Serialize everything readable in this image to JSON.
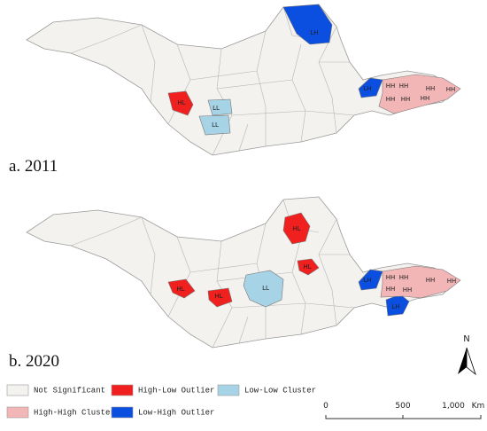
{
  "panels": [
    {
      "label": "a. 2011",
      "regions": [
        {
          "label": "LH",
          "color": "#0a4fe0"
        },
        {
          "label": "HL",
          "color": "#f0201e"
        },
        {
          "label": "LL",
          "color": "#a7d3e6"
        },
        {
          "label": "LL",
          "color": "#a7d3e6"
        },
        {
          "label": "LH",
          "color": "#0a4fe0"
        },
        {
          "label": "HH",
          "color": "#f2b6b6"
        },
        {
          "label": "HH",
          "color": "#f2b6b6"
        },
        {
          "label": "HH",
          "color": "#f2b6b6"
        },
        {
          "label": "HH",
          "color": "#f2b6b6"
        },
        {
          "label": "HH",
          "color": "#f2b6b6"
        },
        {
          "label": "HH",
          "color": "#f2b6b6"
        },
        {
          "label": "HH",
          "color": "#f2b6b6"
        }
      ]
    },
    {
      "label": "b. 2020",
      "regions": [
        {
          "label": "HL",
          "color": "#f0201e"
        },
        {
          "label": "HL",
          "color": "#f0201e"
        },
        {
          "label": "HL",
          "color": "#f0201e"
        },
        {
          "label": "HL",
          "color": "#f0201e"
        },
        {
          "label": "LL",
          "color": "#a7d3e6"
        },
        {
          "label": "LH",
          "color": "#0a4fe0"
        },
        {
          "label": "LH",
          "color": "#0a4fe0"
        },
        {
          "label": "HH",
          "color": "#f2b6b6"
        },
        {
          "label": "HH",
          "color": "#f2b6b6"
        },
        {
          "label": "HH",
          "color": "#f2b6b6"
        },
        {
          "label": "HH",
          "color": "#f2b6b6"
        },
        {
          "label": "HH",
          "color": "#f2b6b6"
        },
        {
          "label": "HH",
          "color": "#f2b6b6"
        }
      ]
    }
  ],
  "legend": [
    {
      "name": "Not Significant",
      "color": "#f3f2ef"
    },
    {
      "name": "High-Low Outlier",
      "color": "#f0201e"
    },
    {
      "name": "Low-Low Cluster",
      "color": "#a7d3e6"
    },
    {
      "name": "High-High Cluster",
      "color": "#f2b6b6"
    },
    {
      "name": "Low-High Outlier",
      "color": "#0a4fe0"
    }
  ],
  "scale_bar": {
    "ticks": [
      "0",
      "500",
      "1,000"
    ],
    "unit": "Km"
  },
  "north": "N"
}
